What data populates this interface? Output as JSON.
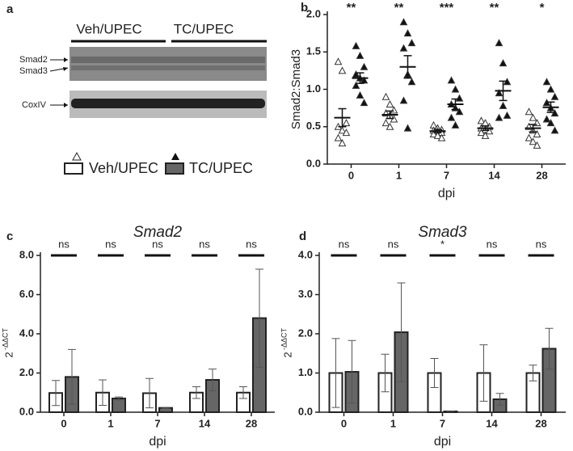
{
  "blot": {
    "panel_label": "a",
    "groups": [
      "Veh/UPEC",
      "TC/UPEC"
    ],
    "bands": [
      "Smad2",
      "Smad3",
      "CoxIV"
    ]
  },
  "chart_data": [
    {
      "type": "scatter",
      "panel_label": "b",
      "xlabel": "dpi",
      "ylabel": "Smad2:Smad3",
      "categories": [
        "0",
        "1",
        "7",
        "14",
        "28"
      ],
      "ylim": [
        0,
        2
      ],
      "yticks": [
        {
          "value": 0,
          "label": "0.0"
        },
        {
          "value": 0.5,
          "label": "0.5"
        },
        {
          "value": 1,
          "label": "1.0"
        },
        {
          "value": 1.5,
          "label": "1.5"
        },
        {
          "value": 2,
          "label": "2.0"
        }
      ],
      "annotations": [
        "**",
        "**",
        "***",
        "**",
        "*"
      ],
      "series": [
        {
          "name": "Veh/UPEC",
          "color": "#ffffff",
          "marker": "open-triangle",
          "mean": [
            0.62,
            0.66,
            0.44,
            0.48,
            0.48
          ],
          "sem": [
            0.12,
            0.05,
            0.02,
            0.03,
            0.05
          ],
          "points": [
            [
              1.37,
              1.25,
              0.55,
              0.5,
              0.45,
              0.42,
              0.35,
              0.28
            ],
            [
              0.9,
              0.8,
              0.72,
              0.68,
              0.65,
              0.6,
              0.55,
              0.5
            ],
            [
              0.52,
              0.48,
              0.46,
              0.45,
              0.44,
              0.42,
              0.4,
              0.38,
              0.35
            ],
            [
              0.58,
              0.55,
              0.5,
              0.48,
              0.46,
              0.44,
              0.42,
              0.38
            ],
            [
              0.7,
              0.62,
              0.55,
              0.5,
              0.45,
              0.4,
              0.35,
              0.3,
              0.25
            ]
          ]
        },
        {
          "name": "TC/UPEC",
          "color": "#111111",
          "marker": "filled-triangle",
          "mean": [
            1.15,
            1.3,
            0.8,
            0.98,
            0.76
          ],
          "sem": [
            0.07,
            0.15,
            0.07,
            0.13,
            0.07
          ],
          "points": [
            [
              1.58,
              1.45,
              1.3,
              1.2,
              1.15,
              1.12,
              1.05,
              0.92,
              0.82
            ],
            [
              1.9,
              1.75,
              1.62,
              1.55,
              1.2,
              1.1,
              0.85,
              0.48
            ],
            [
              1.12,
              1.0,
              0.88,
              0.8,
              0.75,
              0.7,
              0.62,
              0.52
            ],
            [
              1.62,
              1.35,
              1.1,
              0.95,
              0.78,
              0.65,
              0.62
            ],
            [
              1.1,
              1.0,
              0.9,
              0.82,
              0.75,
              0.68,
              0.6,
              0.55,
              0.45
            ]
          ]
        }
      ]
    },
    {
      "type": "bar",
      "panel_label": "c",
      "title": "Smad2",
      "xlabel": "dpi",
      "ylabel": "2",
      "ylabel_superscript": "-ΔΔCT",
      "categories": [
        "0",
        "1",
        "7",
        "14",
        "28"
      ],
      "ylim": [
        0,
        8
      ],
      "yticks": [
        {
          "value": 0,
          "label": "0.0"
        },
        {
          "value": 2,
          "label": "2.0"
        },
        {
          "value": 4,
          "label": "4.0"
        },
        {
          "value": 6,
          "label": "6.0"
        },
        {
          "value": 8,
          "label": "8.0"
        }
      ],
      "annotations": [
        "ns",
        "ns",
        "ns",
        "ns",
        "ns"
      ],
      "series": [
        {
          "color": "#ffffff",
          "values": [
            0.98,
            1.0,
            0.97,
            1.0,
            1.0
          ],
          "errors": [
            0.64,
            0.65,
            0.75,
            0.3,
            0.3
          ]
        },
        {
          "color": "#666666",
          "values": [
            1.8,
            0.7,
            0.22,
            1.65,
            4.8
          ],
          "errors": [
            1.4,
            0.08,
            0.03,
            0.55,
            2.5
          ]
        }
      ]
    },
    {
      "type": "bar",
      "panel_label": "d",
      "title": "Smad3",
      "xlabel": "dpi",
      "ylabel": "2",
      "ylabel_superscript": "-ΔΔCT",
      "categories": [
        "0",
        "1",
        "7",
        "14",
        "28"
      ],
      "ylim": [
        0,
        4
      ],
      "yticks": [
        {
          "value": 0,
          "label": "0.0"
        },
        {
          "value": 1,
          "label": "1.0"
        },
        {
          "value": 2,
          "label": "2.0"
        },
        {
          "value": 3,
          "label": "3.0"
        },
        {
          "value": 4,
          "label": "4.0"
        }
      ],
      "annotations": [
        "ns",
        "ns",
        "*",
        "ns",
        "ns"
      ],
      "series": [
        {
          "color": "#ffffff",
          "values": [
            1.0,
            1.0,
            1.0,
            1.0,
            1.0
          ],
          "errors": [
            0.88,
            0.48,
            0.37,
            0.72,
            0.2
          ]
        },
        {
          "color": "#666666",
          "values": [
            1.03,
            2.04,
            0.02,
            0.33,
            1.62
          ],
          "errors": [
            0.8,
            1.26,
            0,
            0.15,
            0.52
          ]
        }
      ]
    }
  ]
}
